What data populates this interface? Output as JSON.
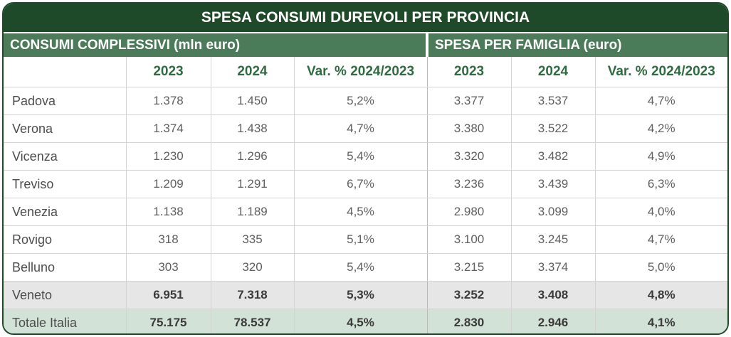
{
  "colors": {
    "title_bar": "#1e4a2a",
    "group_header": "#4b7b59",
    "column_header_text": "#2f6b40",
    "veneto_row": "#e6e6e6",
    "italia_row": "#d2e2d6"
  },
  "chart_data": {
    "type": "table",
    "title": "SPESA CONSUMI DUREVOLI PER PROVINCIA",
    "column_groups": [
      {
        "label": "CONSUMI COMPLESSIVI (mln euro)",
        "columns": [
          "2023",
          "2024",
          "Var. % 2024/2023"
        ]
      },
      {
        "label": "SPESA PER FAMIGLIA (euro)",
        "columns": [
          "2023",
          "2024",
          "Var. % 2024/2023"
        ]
      }
    ],
    "rows": [
      {
        "label": "Padova",
        "consumi_complessivi": [
          "1.378",
          "1.450",
          "5,2%"
        ],
        "spesa_per_famiglia": [
          "3.377",
          "3.537",
          "4,7%"
        ]
      },
      {
        "label": "Verona",
        "consumi_complessivi": [
          "1.374",
          "1.438",
          "4,7%"
        ],
        "spesa_per_famiglia": [
          "3.380",
          "3.522",
          "4,2%"
        ]
      },
      {
        "label": "Vicenza",
        "consumi_complessivi": [
          "1.230",
          "1.296",
          "5,4%"
        ],
        "spesa_per_famiglia": [
          "3.320",
          "3.482",
          "4,9%"
        ]
      },
      {
        "label": "Treviso",
        "consumi_complessivi": [
          "1.209",
          "1.291",
          "6,7%"
        ],
        "spesa_per_famiglia": [
          "3.236",
          "3.439",
          "6,3%"
        ]
      },
      {
        "label": "Venezia",
        "consumi_complessivi": [
          "1.138",
          "1.189",
          "4,5%"
        ],
        "spesa_per_famiglia": [
          "2.980",
          "3.099",
          "4,0%"
        ]
      },
      {
        "label": "Rovigo",
        "consumi_complessivi": [
          "318",
          "335",
          "5,1%"
        ],
        "spesa_per_famiglia": [
          "3.100",
          "3.245",
          "4,7%"
        ]
      },
      {
        "label": "Belluno",
        "consumi_complessivi": [
          "303",
          "320",
          "5,4%"
        ],
        "spesa_per_famiglia": [
          "3.215",
          "3.374",
          "5,0%"
        ]
      },
      {
        "label": "Veneto",
        "consumi_complessivi": [
          "6.951",
          "7.318",
          "5,3%"
        ],
        "spesa_per_famiglia": [
          "3.252",
          "3.408",
          "4,8%"
        ]
      },
      {
        "label": "Totale Italia",
        "consumi_complessivi": [
          "75.175",
          "78.537",
          "4,5%"
        ],
        "spesa_per_famiglia": [
          "2.830",
          "2.946",
          "4,1%"
        ]
      }
    ]
  }
}
